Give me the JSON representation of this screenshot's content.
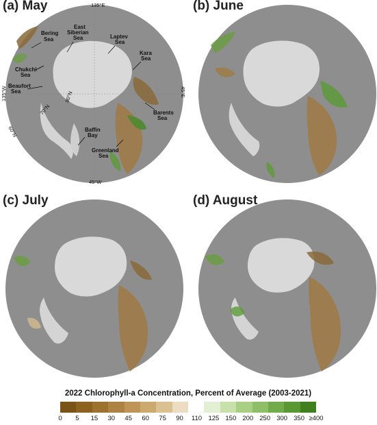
{
  "panels": [
    {
      "title": "(a) May"
    },
    {
      "title": "(b) June"
    },
    {
      "title": "(c) July"
    },
    {
      "title": "(d) August"
    }
  ],
  "coords": {
    "top": "135°E",
    "left": "135°W",
    "right": "45°E",
    "bottom": "45°W",
    "lat80": "80°N",
    "lat70": "70°N",
    "lat60": "60°N"
  },
  "regions": {
    "bering": "Bering Sea",
    "east_siberian": "East Siberian Sea",
    "laptev": "Laptev Sea",
    "kara": "Kara Sea",
    "chukchi": "Chukchi Sea",
    "beaufort": "Beaufort Sea",
    "barents": "Barents Sea",
    "baffin": "Baffin Bay",
    "greenland": "Greenland Sea"
  },
  "legend": {
    "title": "2022 Chlorophyll-a Concentration, Percent of Average (2003-2021)",
    "ticks": [
      "0",
      "5",
      "15",
      "30",
      "45",
      "60",
      "75",
      "90",
      "110",
      "125",
      "150",
      "200",
      "250",
      "300",
      "350",
      "≥400"
    ],
    "colors": [
      "#7a5316",
      "#8c6220",
      "#9d7230",
      "#ad8242",
      "#be9556",
      "#cca96f",
      "#dbc092",
      "#ebdcc2",
      "#ffffff",
      "#e3efd2",
      "#c8e0aa",
      "#a9cf85",
      "#8ebe67",
      "#72ab4b",
      "#5a9834",
      "#3f7f1e"
    ]
  }
}
